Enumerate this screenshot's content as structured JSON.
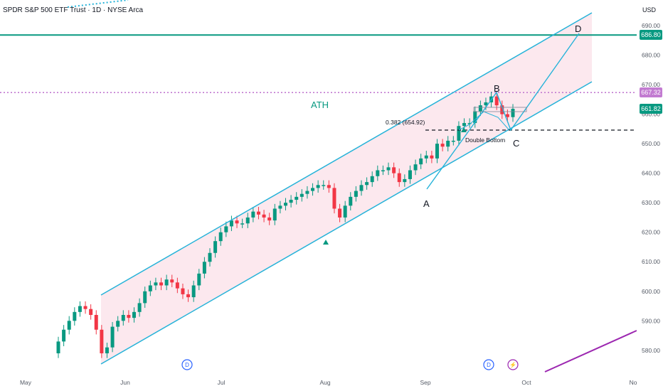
{
  "header": {
    "symbol_line": "SPDR S&P 500 ETF Trust · 1D · NYSE Arca",
    "currency": "USD"
  },
  "price_tags": {
    "resistance": {
      "label": "686.80",
      "color": "#089981"
    },
    "ath": {
      "label": "667.32",
      "color": "#c27bd1"
    },
    "last": {
      "label": "661.82",
      "color": "#089981"
    }
  },
  "annotations": {
    "ath_label": "ATH",
    "fib_label": "0.382 (654.92)",
    "pattern_label": "Double Bottom",
    "point_a": "A",
    "point_b": "B",
    "point_c": "C",
    "point_d": "D",
    "event_dividend": "D",
    "event_split": "⚡"
  },
  "colors": {
    "up": "#089981",
    "down": "#f23645",
    "channel": "#26b3d9",
    "channel_fill": "#fce8ee",
    "resistance": "#089981",
    "ath_line": "#c27bd1",
    "purple_line": "#9c27b0"
  },
  "chart_data": {
    "type": "candlestick",
    "price_axis": {
      "ticks": [
        580,
        590,
        600,
        610,
        620,
        630,
        640,
        650,
        660,
        670,
        680,
        690
      ]
    },
    "time_axis": {
      "labels": [
        "May",
        "Jun",
        "Jul",
        "Aug",
        "Sep",
        "Oct",
        "No"
      ]
    },
    "levels": {
      "resistance": 686.8,
      "ath": 667.32,
      "last_close": 661.82,
      "fib_0382": 654.92
    },
    "closes": [
      583,
      587,
      590,
      593,
      595,
      594,
      592,
      587,
      579,
      581,
      588,
      590,
      592,
      591,
      593,
      596,
      600,
      602,
      603,
      602,
      604,
      603,
      601,
      599,
      598,
      602,
      606,
      610,
      613,
      617,
      620,
      622,
      624,
      623,
      623,
      625,
      627,
      626,
      625,
      624,
      628,
      629,
      630,
      631,
      632,
      633,
      634,
      635,
      636,
      636,
      635,
      628,
      625,
      629,
      632,
      634,
      636,
      637,
      639,
      641,
      641,
      642,
      640,
      637,
      638,
      641,
      643,
      645,
      646,
      645,
      650,
      649,
      651,
      651,
      656,
      657,
      657,
      661,
      663,
      664,
      666,
      663,
      660,
      659,
      661.82
    ]
  }
}
